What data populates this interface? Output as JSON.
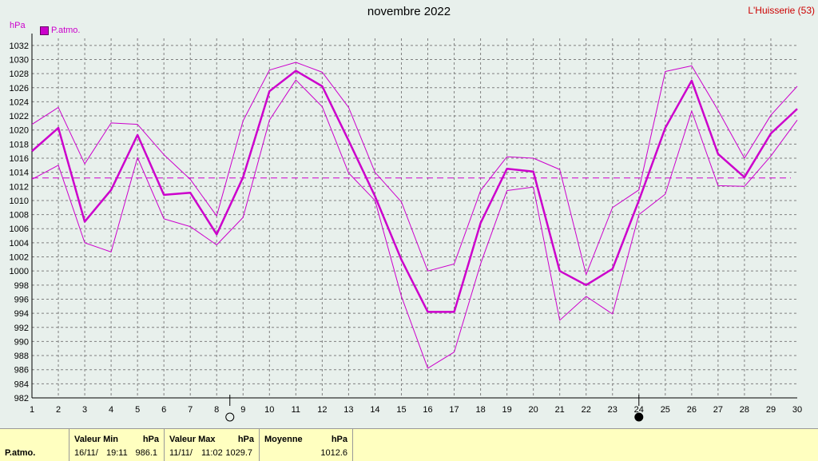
{
  "title": "novembre 2022",
  "station": "L'Huisserie (53)",
  "y_unit": "hPa",
  "legend_label": "P.atmo.",
  "colors": {
    "series": "#cc00cc",
    "background": "#e8f0ec",
    "grid": "#808080",
    "stats_bg": "#ffffc0"
  },
  "moon_phases": [
    {
      "day": 8.5,
      "phase": "full-moon"
    },
    {
      "day": 24,
      "phase": "new-moon"
    }
  ],
  "chart_data": {
    "type": "line",
    "title": "novembre 2022",
    "ylabel": "hPa",
    "x": [
      1,
      2,
      3,
      4,
      5,
      6,
      7,
      8,
      9,
      10,
      11,
      12,
      13,
      14,
      15,
      16,
      17,
      18,
      19,
      20,
      21,
      22,
      23,
      24,
      25,
      26,
      27,
      28,
      29,
      30
    ],
    "xlim": [
      1,
      30
    ],
    "ylim": [
      982,
      1033
    ],
    "ytick_step": 2,
    "grid": true,
    "legend": "top-left",
    "average_line": 1013.2,
    "series": [
      {
        "name": "P.atmo.",
        "role": "mean",
        "values": [
          1017,
          1020.3,
          1007,
          1011.5,
          1019.3,
          1010.8,
          1011.1,
          1005.2,
          1013.3,
          1025.5,
          1028.4,
          1026.2,
          1018.5,
          1010.6,
          1001.6,
          994.2,
          994.2,
          1006.8,
          1014.5,
          1014.1,
          1000,
          998,
          1000.3,
          1010,
          1020.3,
          1027,
          1016.6,
          1013.3,
          1019.5,
          1023
        ],
        "width": 2.5
      },
      {
        "role": "max",
        "values": [
          1020.8,
          1023.2,
          1015.2,
          1021,
          1020.8,
          1016.5,
          1013,
          1007.8,
          1021.3,
          1028.5,
          1029.6,
          1028.2,
          1023.2,
          1014,
          1009.8,
          1000,
          1001,
          1011.4,
          1016.2,
          1016,
          1014.4,
          999.5,
          1009,
          1011.5,
          1028.3,
          1029.1,
          1022.8,
          1016,
          1022.1,
          1026.2
        ],
        "width": 1
      },
      {
        "role": "min",
        "values": [
          1013,
          1015,
          1004,
          1002.7,
          1016.1,
          1007.4,
          1006.3,
          1003.7,
          1007.6,
          1021.4,
          1027.1,
          1023.3,
          1013.9,
          1010,
          996.4,
          986.2,
          988.5,
          1001,
          1011.4,
          1011.9,
          993,
          996.4,
          993.9,
          1008,
          1010.9,
          1022.7,
          1012.1,
          1012,
          1016.3,
          1021.4
        ],
        "width": 1
      }
    ]
  },
  "stats": {
    "label": "P.atmo.",
    "min": {
      "header": "Valeur Min",
      "unit": "hPa",
      "date": "16/11/",
      "time": "19:11",
      "value": "986.1"
    },
    "max": {
      "header": "Valeur Max",
      "unit": "hPa",
      "date": "11/11/",
      "time": "11:02",
      "value": "1029.7"
    },
    "avg": {
      "header": "Moyenne",
      "unit": "hPa",
      "value": "1012.6"
    }
  }
}
